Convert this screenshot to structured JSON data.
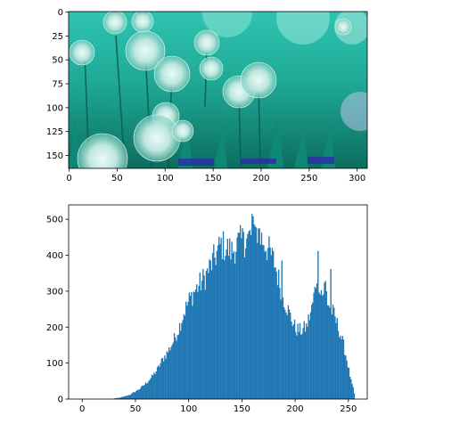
{
  "chart_data": [
    {
      "type": "image",
      "title": "",
      "xlabel": "",
      "ylabel": "",
      "xlim": [
        -0.5,
        310.5
      ],
      "ylim": [
        163.5,
        -0.5
      ],
      "xticks": [
        0,
        50,
        100,
        150,
        200,
        250,
        300
      ],
      "xtick_labels": [
        "0",
        "50",
        "100",
        "150",
        "200",
        "250",
        "300"
      ],
      "yticks": [
        0,
        25,
        50,
        75,
        100,
        125,
        150
      ],
      "ytick_labels": [
        "0",
        "25",
        "50",
        "75",
        "100",
        "125",
        "150"
      ],
      "grid": false,
      "content": "teal-tinted photo of allium flowers over grass",
      "colors": {
        "background": "#1fb5a3",
        "light": "#cfeee8",
        "dark": "#0b6b5e",
        "accent": "#2b2ea8"
      }
    },
    {
      "type": "bar",
      "title": "",
      "xlabel": "",
      "ylabel": "",
      "xlim": [
        -12.75,
        267.75
      ],
      "ylim": [
        0,
        540
      ],
      "xticks": [
        0,
        50,
        100,
        150,
        200,
        250
      ],
      "xtick_labels": [
        "0",
        "50",
        "100",
        "150",
        "200",
        "250"
      ],
      "yticks": [
        0,
        100,
        200,
        300,
        400,
        500
      ],
      "ytick_labels": [
        "0",
        "100",
        "200",
        "300",
        "400",
        "500"
      ],
      "grid": false,
      "bar_color": "#1f77b4",
      "bins": 256,
      "anchors": [
        [
          0,
          0
        ],
        [
          28,
          0
        ],
        [
          30,
          2
        ],
        [
          35,
          4
        ],
        [
          40,
          8
        ],
        [
          45,
          13
        ],
        [
          50,
          22
        ],
        [
          55,
          32
        ],
        [
          60,
          46
        ],
        [
          65,
          62
        ],
        [
          70,
          82
        ],
        [
          75,
          110
        ],
        [
          80,
          132
        ],
        [
          85,
          160
        ],
        [
          90,
          195
        ],
        [
          95,
          240
        ],
        [
          100,
          275
        ],
        [
          105,
          300
        ],
        [
          110,
          320
        ],
        [
          115,
          340
        ],
        [
          120,
          370
        ],
        [
          125,
          400
        ],
        [
          130,
          430
        ],
        [
          135,
          420
        ],
        [
          140,
          410
        ],
        [
          145,
          430
        ],
        [
          150,
          440
        ],
        [
          155,
          445
        ],
        [
          160,
          465
        ],
        [
          163,
          470
        ],
        [
          166,
          450
        ],
        [
          170,
          440
        ],
        [
          175,
          410
        ],
        [
          180,
          380
        ],
        [
          185,
          320
        ],
        [
          190,
          270
        ],
        [
          195,
          230
        ],
        [
          200,
          195
        ],
        [
          205,
          190
        ],
        [
          210,
          200
        ],
        [
          215,
          250
        ],
        [
          218,
          300
        ],
        [
          220,
          350
        ],
        [
          222,
          330
        ],
        [
          225,
          290
        ],
        [
          228,
          320
        ],
        [
          230,
          270
        ],
        [
          235,
          240
        ],
        [
          240,
          200
        ],
        [
          245,
          150
        ],
        [
          248,
          110
        ],
        [
          250,
          80
        ],
        [
          252,
          50
        ],
        [
          254,
          30
        ],
        [
          255,
          15
        ],
        [
          256,
          0
        ]
      ],
      "spikes": [
        [
          151,
          465
        ],
        [
          159,
          515
        ],
        [
          162,
          480
        ],
        [
          166,
          475
        ],
        [
          187,
          385
        ],
        [
          221,
          412
        ],
        [
          233,
          362
        ]
      ]
    }
  ]
}
